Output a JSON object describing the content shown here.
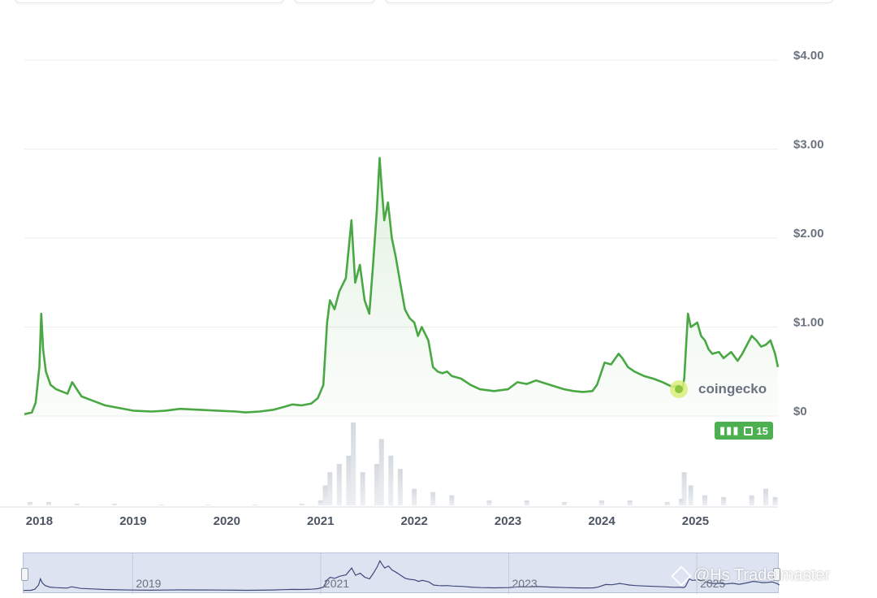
{
  "chart_data": {
    "type": "area",
    "title": "",
    "xlabel": "",
    "ylabel": "",
    "ylim": [
      0,
      4
    ],
    "xlim": [
      2017.84,
      2025.88
    ],
    "y_ticks": [
      "$4.00",
      "$3.00",
      "$2.00",
      "$1.00",
      "$0"
    ],
    "y_tick_values": [
      4,
      3,
      2,
      1,
      0
    ],
    "x_ticks": [
      "2018",
      "2019",
      "2020",
      "2021",
      "2022",
      "2023",
      "2024",
      "2025"
    ],
    "x_tick_values": [
      2018,
      2019,
      2020,
      2021,
      2022,
      2023,
      2024,
      2025
    ],
    "grid": true,
    "series": [
      {
        "color": "#4aa844",
        "x": [
          2017.84,
          2017.92,
          2017.96,
          2018.0,
          2018.02,
          2018.04,
          2018.07,
          2018.12,
          2018.18,
          2018.3,
          2018.35,
          2018.45,
          2018.55,
          2018.7,
          2018.85,
          2019.0,
          2019.2,
          2019.35,
          2019.5,
          2019.7,
          2019.9,
          2020.1,
          2020.2,
          2020.35,
          2020.5,
          2020.6,
          2020.7,
          2020.8,
          2020.9,
          2020.97,
          2021.03,
          2021.07,
          2021.1,
          2021.15,
          2021.2,
          2021.27,
          2021.33,
          2021.37,
          2021.42,
          2021.47,
          2021.52,
          2021.56,
          2021.6,
          2021.63,
          2021.65,
          2021.68,
          2021.72,
          2021.76,
          2021.8,
          2021.85,
          2021.9,
          2021.95,
          2022.0,
          2022.04,
          2022.08,
          2022.15,
          2022.2,
          2022.25,
          2022.3,
          2022.35,
          2022.4,
          2022.5,
          2022.6,
          2022.7,
          2022.85,
          2023.0,
          2023.1,
          2023.2,
          2023.3,
          2023.45,
          2023.6,
          2023.7,
          2023.8,
          2023.9,
          2023.95,
          2024.03,
          2024.1,
          2024.18,
          2024.22,
          2024.28,
          2024.35,
          2024.45,
          2024.55,
          2024.65,
          2024.75,
          2024.82,
          2024.86,
          2024.88,
          2024.92,
          2024.95,
          2025.02,
          2025.06,
          2025.1,
          2025.14,
          2025.18,
          2025.25,
          2025.3,
          2025.38,
          2025.45,
          2025.5,
          2025.55,
          2025.6,
          2025.65,
          2025.7,
          2025.75,
          2025.8,
          2025.85,
          2025.88
        ],
        "y": [
          0.02,
          0.04,
          0.15,
          0.55,
          1.15,
          0.75,
          0.5,
          0.35,
          0.3,
          0.25,
          0.38,
          0.22,
          0.18,
          0.12,
          0.09,
          0.06,
          0.05,
          0.06,
          0.08,
          0.07,
          0.06,
          0.05,
          0.04,
          0.05,
          0.07,
          0.1,
          0.13,
          0.12,
          0.14,
          0.2,
          0.35,
          1.05,
          1.3,
          1.2,
          1.4,
          1.55,
          2.2,
          1.5,
          1.7,
          1.3,
          1.15,
          1.7,
          2.3,
          2.9,
          2.6,
          2.2,
          2.4,
          2.0,
          1.8,
          1.5,
          1.2,
          1.1,
          1.05,
          0.9,
          1.0,
          0.85,
          0.55,
          0.5,
          0.48,
          0.5,
          0.45,
          0.42,
          0.35,
          0.3,
          0.28,
          0.3,
          0.38,
          0.36,
          0.4,
          0.35,
          0.3,
          0.28,
          0.27,
          0.28,
          0.35,
          0.6,
          0.58,
          0.7,
          0.65,
          0.55,
          0.5,
          0.45,
          0.42,
          0.38,
          0.33,
          0.34,
          0.3,
          0.42,
          1.15,
          1.0,
          1.05,
          0.9,
          0.85,
          0.75,
          0.7,
          0.72,
          0.65,
          0.72,
          0.62,
          0.7,
          0.8,
          0.9,
          0.85,
          0.78,
          0.8,
          0.85,
          0.7,
          0.55
        ]
      }
    ],
    "volume": {
      "x": [
        2017.9,
        2018.1,
        2018.4,
        2018.8,
        2019.3,
        2019.8,
        2020.3,
        2020.8,
        2021.0,
        2021.05,
        2021.1,
        2021.2,
        2021.3,
        2021.35,
        2021.45,
        2021.6,
        2021.65,
        2021.75,
        2021.85,
        2022.0,
        2022.2,
        2022.4,
        2022.8,
        2023.2,
        2023.6,
        2024.0,
        2024.3,
        2024.7,
        2024.85,
        2024.88,
        2024.95,
        2025.1,
        2025.3,
        2025.6,
        2025.75,
        2025.85
      ],
      "y": [
        0.02,
        0.02,
        0.01,
        0.01,
        0.005,
        0.005,
        0.005,
        0.01,
        0.03,
        0.12,
        0.2,
        0.25,
        0.3,
        0.5,
        0.2,
        0.25,
        0.4,
        0.3,
        0.22,
        0.1,
        0.08,
        0.06,
        0.03,
        0.03,
        0.02,
        0.03,
        0.03,
        0.02,
        0.04,
        0.2,
        0.12,
        0.06,
        0.05,
        0.06,
        0.1,
        0.05
      ]
    },
    "navigator": {
      "labels": [
        "2019",
        "2021",
        "2023",
        "2025"
      ],
      "label_values": [
        2019,
        2021,
        2023,
        2025
      ]
    }
  },
  "branding": {
    "logo_text": "coingecko",
    "badge_count": "15",
    "watermark": "@Hs Trade master"
  },
  "colors": {
    "line": "#4aa844",
    "fill": "#4aa844",
    "grid": "#eeeeee",
    "badge": "#4caf50",
    "navigator_bg": "#dde3f1",
    "navigator_line": "#3f4a7a"
  }
}
